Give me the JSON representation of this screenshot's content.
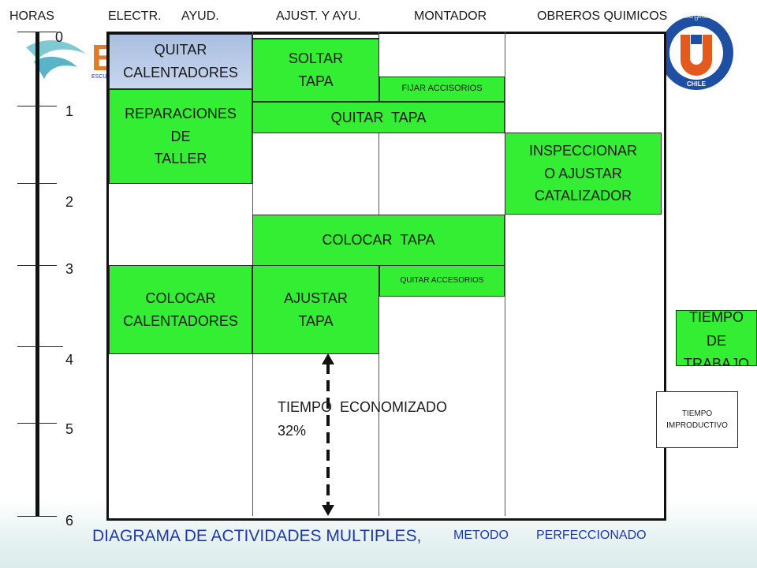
{
  "axis": {
    "title": "HORAS",
    "ticks": [
      "0",
      "1",
      "2",
      "3",
      "4",
      "5",
      "6"
    ]
  },
  "columns": [
    "ELECTR.",
    "AYUD.",
    "AJUST. Y AYU.",
    "MONTADOR",
    "OBREROS QUIMICOS"
  ],
  "activities": {
    "quitar_calentadores": "QUITAR\nCALENTADORES",
    "reparaciones_taller": "REPARACIONES\nDE\nTALLER",
    "colocar_calentadores": "COLOCAR\nCALENTADORES",
    "soltar_tapa": "SOLTAR\nTAPA",
    "quitar_tapa": "QUITAR  TAPA",
    "colocar_tapa": "COLOCAR  TAPA",
    "ajustar_tapa": "AJUSTAR\nTAPA",
    "fijar_accesorios": "FIJAR ACCISORIOS",
    "quitar_accesorios": "QUITAR ACCESORIOS",
    "inspeccionar": "INSPECCIONAR\nO  AJUSTAR\nCATALIZADOR"
  },
  "annotation": {
    "line1": "TIEMPO  ECONOMIZADO",
    "line2": "32%"
  },
  "legend": {
    "tiempo_trabajo": "TIEMPO\nDE\nTRABAJO",
    "tiempo_improductivo": "TIEMPO\nIMPRODUCTIVO"
  },
  "logo_left": {
    "letters": "E",
    "small": "ESCU"
  },
  "logo_right": {
    "ring_text": "UNIVERSIDAD CATOLICA DEL NORTE",
    "bottom": "CHILE",
    "letter": "U"
  },
  "footer": {
    "title": "DIAGRAMA DE ACTIVIDADES MULTIPLES,",
    "sub1": "METODO",
    "sub2": "PERFECCIONADO"
  },
  "colors": {
    "activity": "#33ee33",
    "highlight": "#a9bfe0",
    "title": "#1f3aa8"
  }
}
